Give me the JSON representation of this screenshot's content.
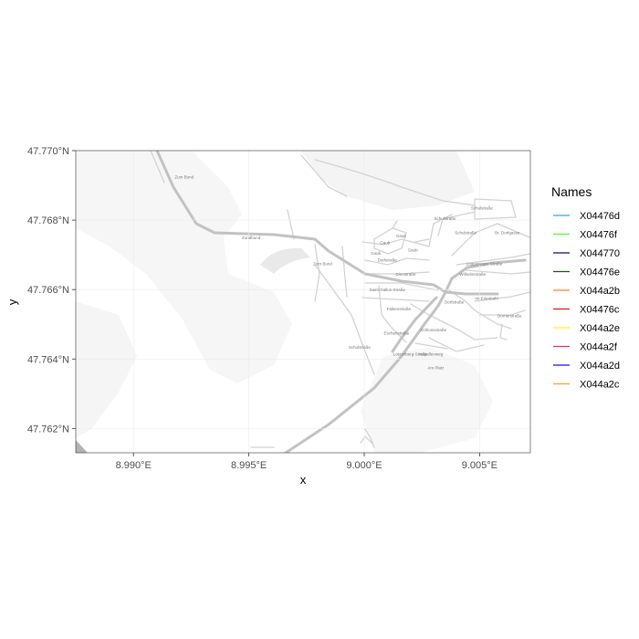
{
  "plot": {
    "x_axis_title": "x",
    "y_axis_title": "y",
    "x_ticks": [
      {
        "value": 8.99,
        "label": "8.990°E"
      },
      {
        "value": 8.995,
        "label": "8.995°E"
      },
      {
        "value": 9.0,
        "label": "9.000°E"
      },
      {
        "value": 9.005,
        "label": "9.005°E"
      }
    ],
    "y_ticks": [
      {
        "value": 47.77,
        "label": "47.770°N"
      },
      {
        "value": 47.768,
        "label": "47.768°N"
      },
      {
        "value": 47.766,
        "label": "47.766°N"
      },
      {
        "value": 47.764,
        "label": "47.764°N"
      },
      {
        "value": 47.762,
        "label": "47.762°N"
      }
    ],
    "xlim": [
      8.9875,
      9.0072
    ],
    "ylim": [
      47.7613,
      47.77
    ],
    "grid": true
  },
  "legend": {
    "title": "Names",
    "placement": "right",
    "items": [
      {
        "label": "X04476d",
        "color": "#29a9e1"
      },
      {
        "label": "X04476f",
        "color": "#5cf52a"
      },
      {
        "label": "X044770",
        "color": "#0a0a6e"
      },
      {
        "label": "X04476e",
        "color": "#0b5e0b"
      },
      {
        "label": "X044a2b",
        "color": "#ff7f24"
      },
      {
        "label": "X04476c",
        "color": "#e8110f"
      },
      {
        "label": "X044a2e",
        "color": "#f8f821"
      },
      {
        "label": "X044a2f",
        "color": "#e62e7a"
      },
      {
        "label": "X044a2d",
        "color": "#1616d6"
      },
      {
        "label": "X044a2c",
        "color": "#ff9f1a"
      }
    ]
  },
  "map": {
    "basemap_colors": {
      "land": "#ffffff",
      "landuse": "#f2f2f2",
      "minor_road": "#d4d4d4",
      "major_road": "#c0c0c0",
      "label": "#777777"
    },
    "street_labels": [
      {
        "text": "Zum Bund",
        "lon": 8.9922,
        "lat": 47.7692
      },
      {
        "text": "Zundbund",
        "lon": 8.9951,
        "lat": 47.76745
      },
      {
        "text": "Zum Bund",
        "lon": 8.9982,
        "lat": 47.7667
      },
      {
        "text": "Saint-Gallus-Straße",
        "lon": 9.001,
        "lat": 47.76595
      },
      {
        "text": "Falkenstraße",
        "lon": 9.0015,
        "lat": 47.7654
      },
      {
        "text": "Dinnstraße",
        "lon": 9.0018,
        "lat": 47.7664
      },
      {
        "text": "Schulstraße",
        "lon": 8.9998,
        "lat": 47.7643
      },
      {
        "text": "Schulstraße",
        "lon": 9.0035,
        "lat": 47.768
      },
      {
        "text": "Schulstraße",
        "lon": 9.0051,
        "lat": 47.7683
      },
      {
        "text": "Eschenstraße",
        "lon": 9.0014,
        "lat": 47.7647
      },
      {
        "text": "Lötzenberg-Straße",
        "lon": 9.002,
        "lat": 47.7641
      },
      {
        "text": "Schlossstraße",
        "lon": 9.003,
        "lat": 47.7648
      },
      {
        "text": "Am Platz",
        "lon": 9.0031,
        "lat": 47.7637
      },
      {
        "text": "Kapellenweg",
        "lon": 9.0029,
        "lat": 47.7641
      },
      {
        "text": "Dorfstraße",
        "lon": 9.0039,
        "lat": 47.7656
      },
      {
        "text": "Im Erlenbühl",
        "lon": 9.0053,
        "lat": 47.7657
      },
      {
        "text": "Dornerstraße",
        "lon": 9.0063,
        "lat": 47.7652
      },
      {
        "text": "Wilhelmstraße",
        "lon": 9.0047,
        "lat": 47.7664
      },
      {
        "text": "Löggasinger Straße",
        "lon": 9.0052,
        "lat": 47.7667
      },
      {
        "text": "Schulstraße",
        "lon": 9.0044,
        "lat": 47.7676
      },
      {
        "text": "Br. Dorfgasse",
        "lon": 9.0062,
        "lat": 47.7676
      },
      {
        "text": "Gaub",
        "lon": 9.0009,
        "lat": 47.7673
      },
      {
        "text": "Gaub",
        "lon": 9.0016,
        "lat": 47.7675
      },
      {
        "text": "Gaub",
        "lon": 9.0021,
        "lat": 47.7671
      },
      {
        "text": "Gaub",
        "lon": 9.0005,
        "lat": 47.767
      },
      {
        "text": "Dorfstraße",
        "lon": 9.001,
        "lat": 47.7668
      }
    ]
  }
}
